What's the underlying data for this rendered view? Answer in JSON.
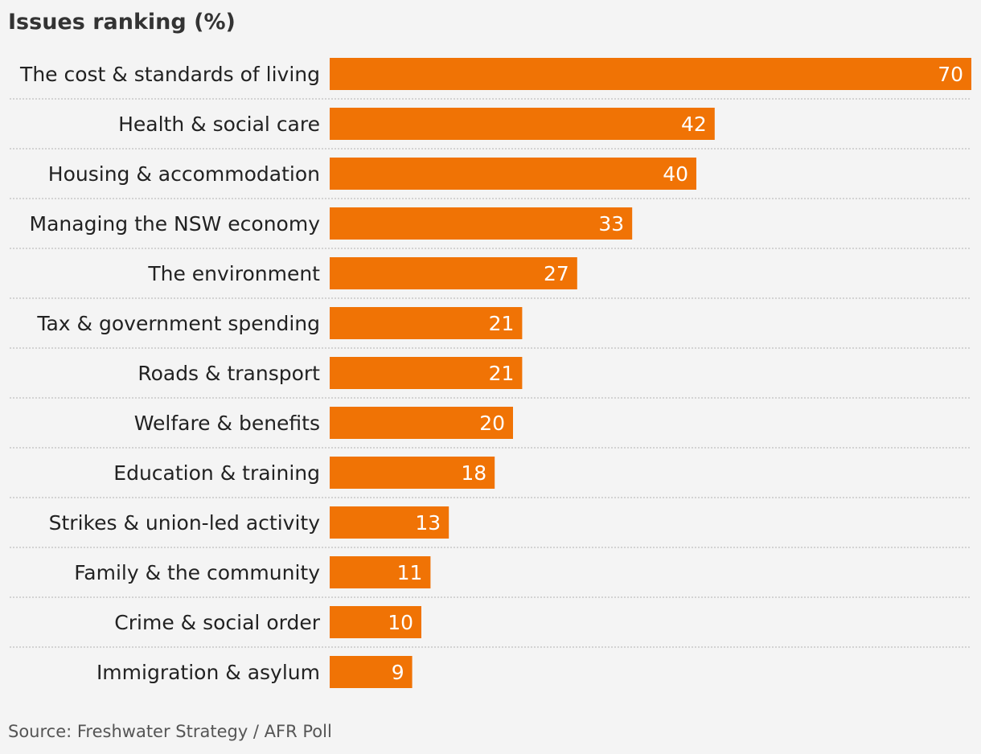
{
  "chart_data": {
    "type": "bar",
    "orientation": "horizontal",
    "title": "Issues ranking (%)",
    "categories": [
      "The cost & standards of living",
      "Health & social care",
      "Housing & accommodation",
      "Managing the NSW economy",
      "The environment",
      "Tax & government spending",
      "Roads & transport",
      "Welfare & benefits",
      "Education & training",
      "Strikes & union-led activity",
      "Family & the community",
      "Crime & social order",
      "Immigration & asylum"
    ],
    "values": [
      70,
      42,
      40,
      33,
      27,
      21,
      21,
      20,
      18,
      13,
      11,
      10,
      9
    ],
    "xlim": [
      0,
      70
    ],
    "bar_color": "#f07305",
    "value_label_color": "#ffffff",
    "separator_color": "#c8c8c8",
    "grid": false,
    "legend": "none",
    "source": "Source: Freshwater Strategy / AFR Poll"
  }
}
